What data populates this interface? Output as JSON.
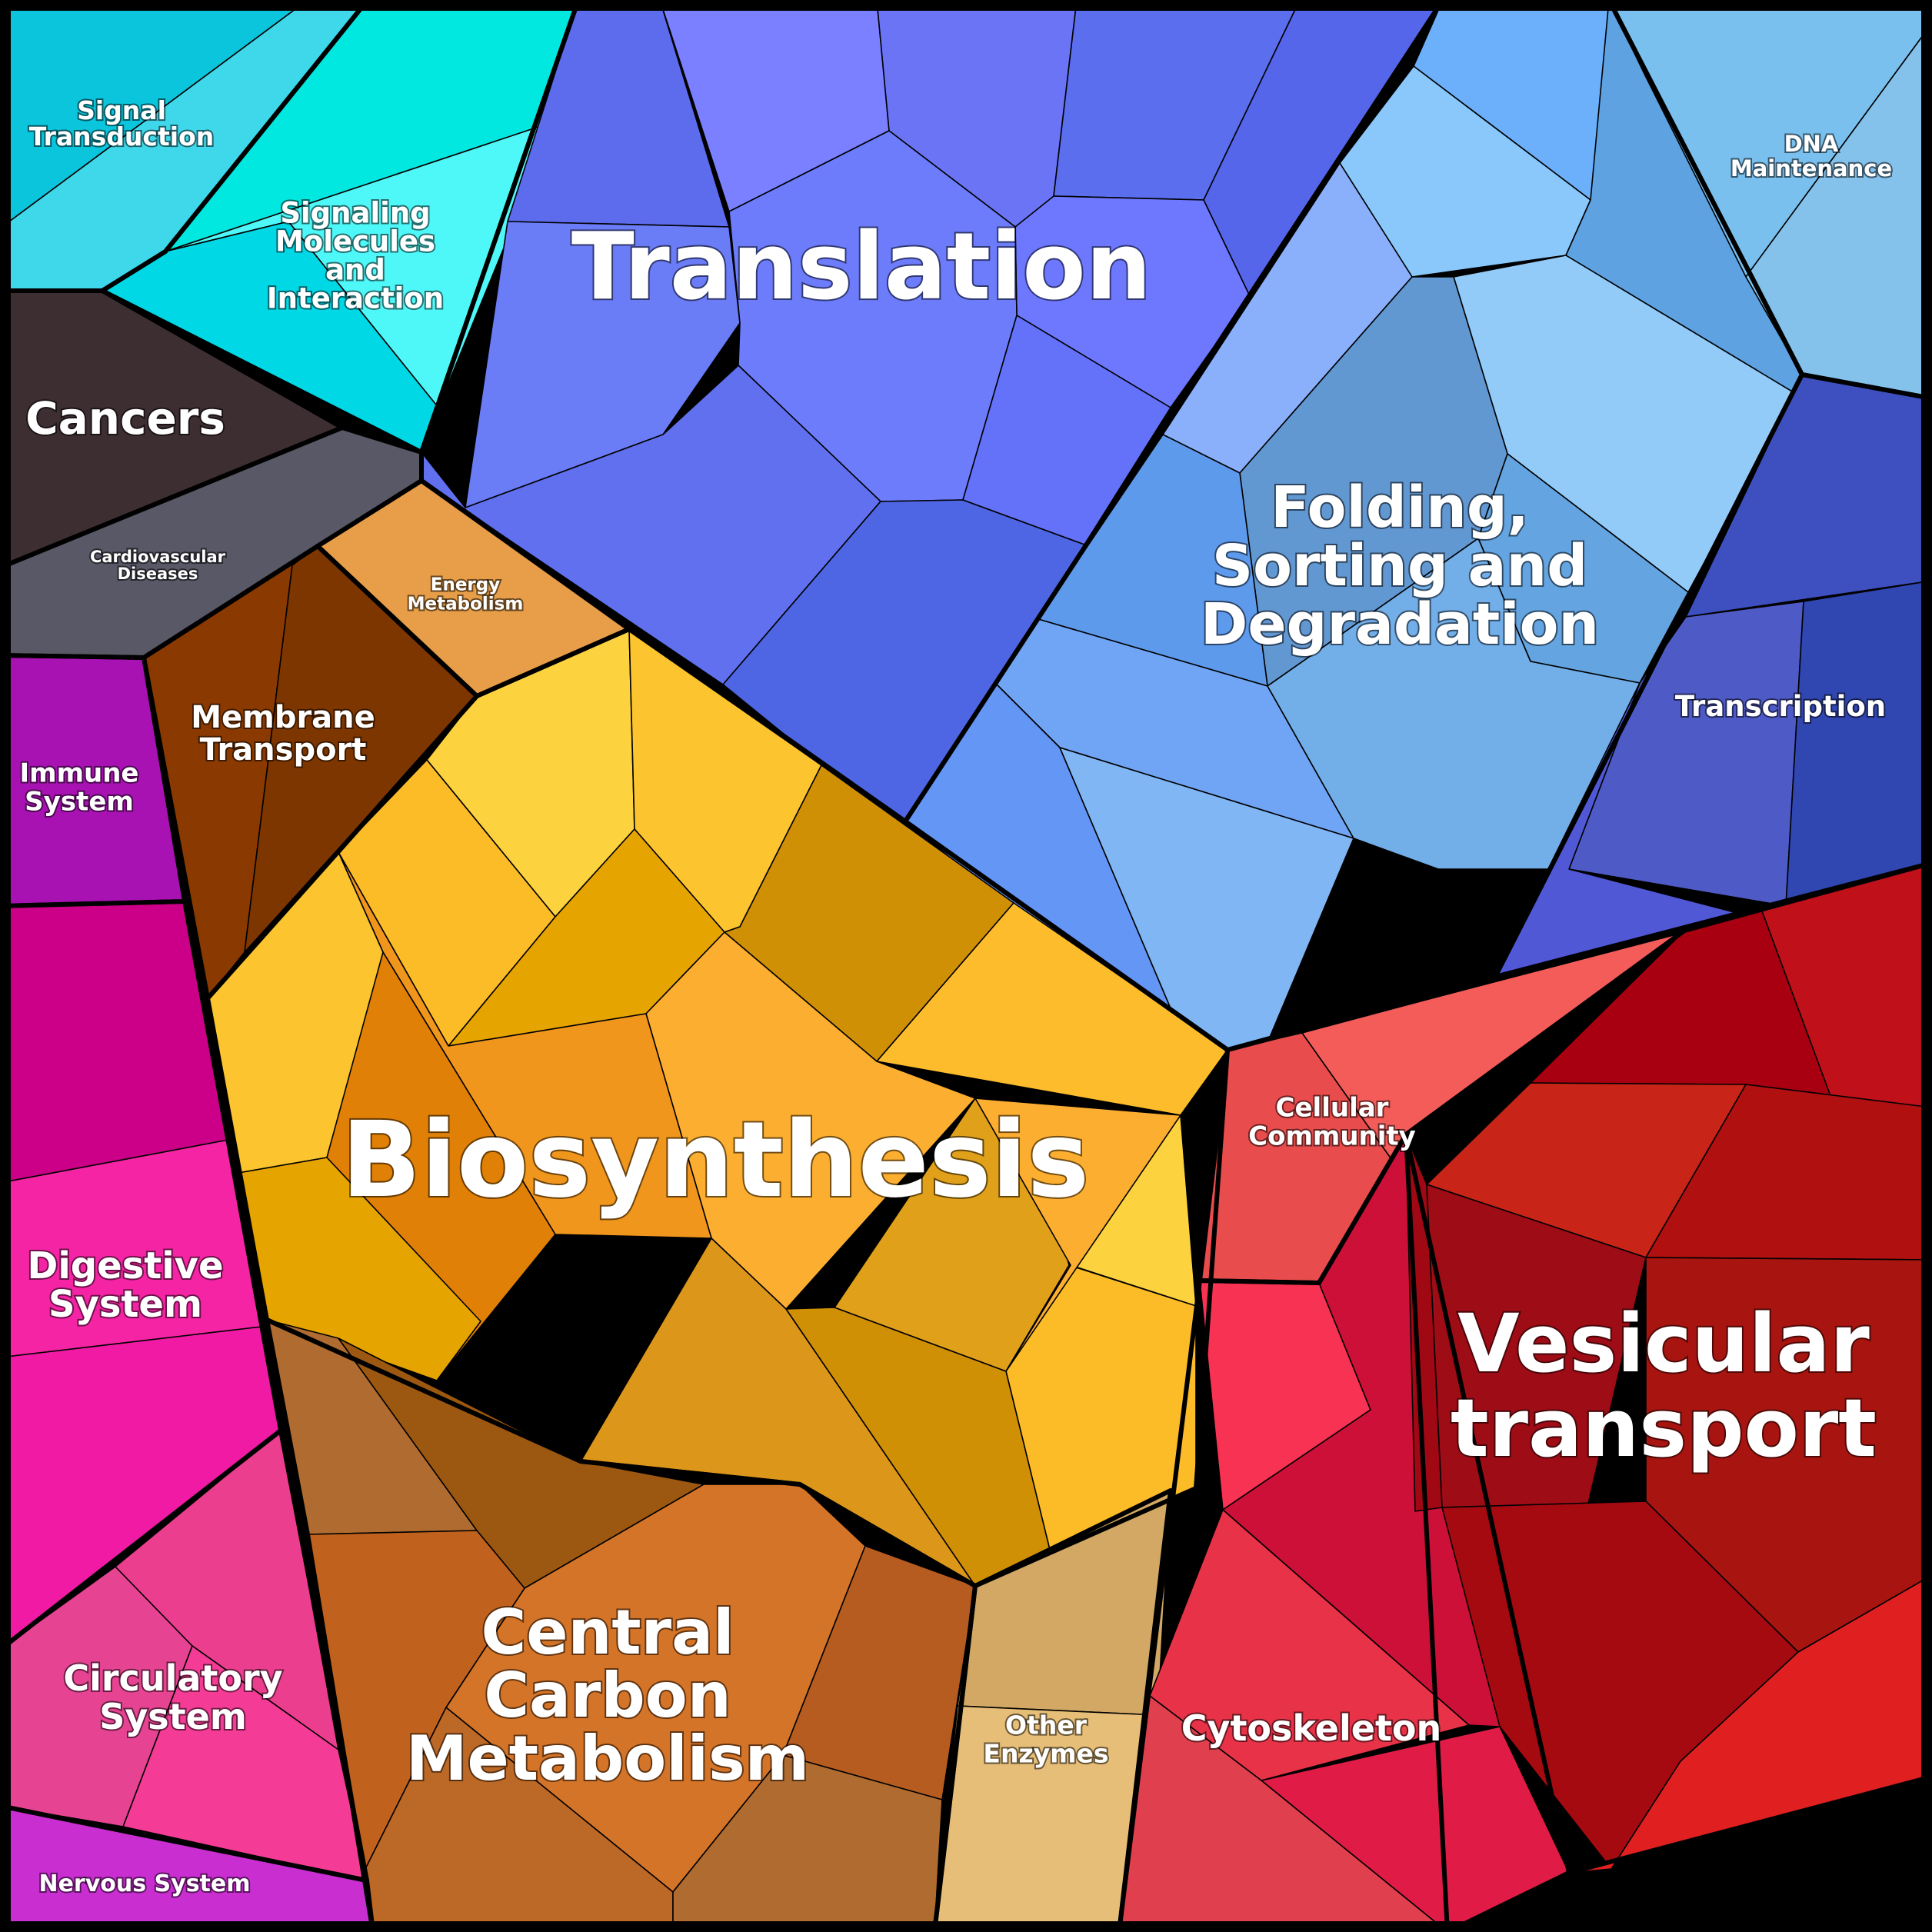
{
  "categories": [
    {
      "id": "signal-transduction",
      "label": [
        "Signal",
        "Transduction"
      ],
      "colors": [
        "#0ac5dc",
        "#3ed8ea"
      ]
    },
    {
      "id": "signaling-molecules",
      "label": [
        "Signaling",
        "Molecules",
        "and",
        "Interaction"
      ],
      "colors": [
        "#00e8e0",
        "#4ff8f8",
        "#00d8e6"
      ]
    },
    {
      "id": "cancers",
      "label": [
        "Cancers"
      ],
      "colors": [
        "#3d2e32"
      ]
    },
    {
      "id": "cardiovascular-diseases",
      "label": [
        "Cardiovascular",
        "Diseases"
      ],
      "colors": [
        "#585866"
      ]
    },
    {
      "id": "translation",
      "label": [
        "Translation"
      ],
      "colors": [
        "#5d6ced",
        "#7a80ff",
        "#6b74f4",
        "#5a6eee",
        "#5566ea",
        "#6d78ff",
        "#6a7cf6",
        "#6c7cfb",
        "#6070ee",
        "#4e66e4",
        "#6472fa"
      ]
    },
    {
      "id": "folding-sorting-degradation",
      "label": [
        "Folding,",
        "Sorting and",
        "Degradation"
      ],
      "colors": [
        "#6cb0fc",
        "#8ac8fc",
        "#5ea2e2",
        "#8ab0fc",
        "#92caf8",
        "#6298d2",
        "#5e9aec",
        "#70a4f4",
        "#6496f6",
        "#80b6f4",
        "#64a4e0",
        "#72aee8"
      ]
    },
    {
      "id": "dna-maintenance",
      "label": [
        "DNA",
        "Maintenance"
      ],
      "colors": [
        "#7ac0ee",
        "#84c2ec"
      ]
    },
    {
      "id": "transcription",
      "label": [
        "Transcription"
      ],
      "colors": [
        "#3e50c0",
        "#4e5ac6",
        "#5058d6",
        "#3046b0"
      ]
    },
    {
      "id": "energy-metabolism",
      "label": [
        "Energy",
        "Metabolism"
      ],
      "colors": [
        "#e89e48"
      ]
    },
    {
      "id": "membrane-transport",
      "label": [
        "Membrane",
        "Transport"
      ],
      "colors": [
        "#8a3a00",
        "#7e3600"
      ]
    },
    {
      "id": "immune-system",
      "label": [
        "Immune",
        "System"
      ],
      "colors": [
        "#a812b2"
      ]
    },
    {
      "id": "biosynthesis",
      "label": [
        "Biosynthesis"
      ],
      "colors": [
        "#fcd23e",
        "#fcbc28",
        "#fcc42e",
        "#e6a400",
        "#d09006",
        "#fcae30",
        "#f0961c",
        "#e08006",
        "#dc961a",
        "#fcbc2c",
        "#e0a01a"
      ]
    },
    {
      "id": "central-carbon-metabolism",
      "label": [
        "Central",
        "Carbon",
        "Metabolism"
      ],
      "colors": [
        "#b06c30",
        "#9c5810",
        "#d47428",
        "#b65c20",
        "#c0621e",
        "#bc6826"
      ]
    },
    {
      "id": "other-enzymes",
      "label": [
        "Other",
        "Enzymes"
      ],
      "colors": [
        "#d2a864",
        "#e6be78"
      ]
    },
    {
      "id": "digestive-system",
      "label": [
        "Digestive",
        "System"
      ],
      "colors": [
        "#cc0088",
        "#f424a4",
        "#f01aa4"
      ]
    },
    {
      "id": "circulatory-system",
      "label": [
        "Circulatory",
        "System"
      ],
      "colors": [
        "#e64492",
        "#ec3e8e",
        "#f43c96"
      ]
    },
    {
      "id": "nervous-system",
      "label": [
        "Nervous System"
      ],
      "colors": [
        "#c82ed0"
      ]
    },
    {
      "id": "cellular-community",
      "label": [
        "Cellular",
        "Community"
      ],
      "colors": [
        "#e84c4c",
        "#f45c5a"
      ]
    },
    {
      "id": "cytoskeleton",
      "label": [
        "Cytoskeleton"
      ],
      "colors": [
        "#f83252",
        "#cc1038",
        "#e83248",
        "#e01c46",
        "#e0404e"
      ]
    },
    {
      "id": "vesicular-transport",
      "label": [
        "Vesicular",
        "transport"
      ],
      "colors": [
        "#a80010",
        "#c0101a",
        "#c82418",
        "#b01010",
        "#a00814",
        "#9e0c16",
        "#a81410",
        "#a40a10",
        "#e02020"
      ]
    }
  ]
}
